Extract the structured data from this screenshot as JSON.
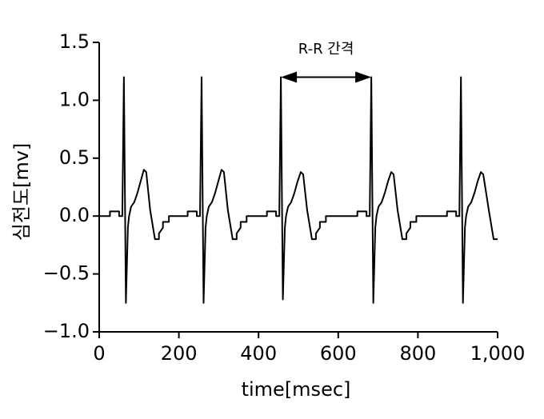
{
  "chart_data": {
    "type": "line",
    "xlabel": "time[msec]",
    "ylabel": "심전도[mv]",
    "xlim": [
      0,
      1000
    ],
    "ylim": [
      -1.0,
      1.5
    ],
    "xticks": [
      0,
      200,
      400,
      600,
      800,
      {
        "value": 1000,
        "label": "1,000"
      }
    ],
    "yticks": [
      {
        "value": -1.0,
        "label": "−1.0"
      },
      {
        "value": -0.5,
        "label": "−0.5"
      },
      {
        "value": 0.0,
        "label": "0.0"
      },
      {
        "value": 0.5,
        "label": "0.5"
      },
      {
        "value": 1.0,
        "label": "1.0"
      },
      {
        "value": 1.5,
        "label": "1.5"
      }
    ],
    "annotation": {
      "text": "R-R 간격",
      "x": [
        456,
        683
      ],
      "y": 1.2
    },
    "series": [
      {
        "color": "#000000",
        "x": [
          0,
          27,
          27,
          50,
          50,
          58,
          62,
          67,
          72,
          75,
          80,
          88,
          96,
          104,
          112,
          118,
          128,
          140,
          150,
          150,
          160,
          160,
          175,
          175,
          222,
          222,
          245,
          245,
          253,
          257,
          262,
          267,
          270,
          275,
          283,
          291,
          299,
          307,
          313,
          323,
          335,
          345,
          345,
          355,
          355,
          370,
          370,
          421,
          421,
          444,
          444,
          452,
          456,
          461,
          466,
          469,
          474,
          482,
          490,
          498,
          506,
          512,
          522,
          534,
          544,
          544,
          554,
          554,
          569,
          569,
          648,
          648,
          671,
          671,
          679,
          683,
          688,
          693,
          696,
          701,
          709,
          717,
          725,
          733,
          739,
          749,
          761,
          771,
          771,
          781,
          781,
          796,
          796,
          873,
          873,
          896,
          896,
          904,
          908,
          913,
          918,
          921,
          926,
          934,
          942,
          950,
          958,
          964,
          978,
          990,
          1000
        ],
        "values": [
          0,
          0,
          0.04,
          0.04,
          0,
          0,
          1.2,
          -0.75,
          -0.1,
          0,
          0.08,
          0.12,
          0.2,
          0.3,
          0.4,
          0.38,
          0.05,
          -0.2,
          -0.2,
          -0.15,
          -0.1,
          -0.05,
          -0.05,
          0,
          0,
          0.04,
          0.04,
          0,
          0,
          1.2,
          -0.75,
          -0.1,
          0,
          0.08,
          0.12,
          0.2,
          0.3,
          0.4,
          0.38,
          0.05,
          -0.2,
          -0.2,
          -0.15,
          -0.1,
          -0.05,
          -0.05,
          0,
          0,
          0.04,
          0.04,
          0,
          0,
          1.2,
          -0.72,
          -0.1,
          0,
          0.08,
          0.12,
          0.2,
          0.3,
          0.38,
          0.36,
          0.05,
          -0.2,
          -0.2,
          -0.15,
          -0.1,
          -0.05,
          -0.05,
          0,
          0,
          0.04,
          0.04,
          0,
          0,
          1.2,
          -0.75,
          -0.1,
          0,
          0.08,
          0.12,
          0.2,
          0.3,
          0.38,
          0.36,
          0.05,
          -0.2,
          -0.2,
          -0.15,
          -0.1,
          -0.05,
          -0.05,
          0,
          0,
          0.04,
          0.04,
          0,
          0,
          1.2,
          -0.75,
          -0.1,
          0,
          0.08,
          0.12,
          0.2,
          0.3,
          0.38,
          0.36,
          0.05,
          -0.2,
          -0.2
        ]
      }
    ]
  }
}
